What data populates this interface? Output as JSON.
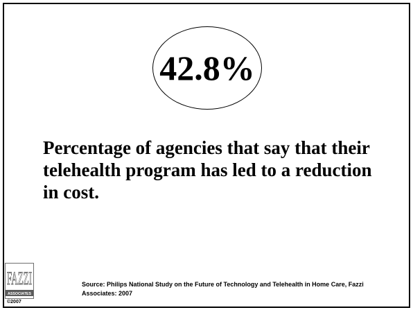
{
  "slide": {
    "statistic": "42.8%",
    "description": "Percentage of agencies that say that their telehealth program has led to a reduction in cost.",
    "source": "Source: Philips National Study on the Future of Technology and Telehealth in Home Care, Fazzi Associates: 2007",
    "copyright": "©2007"
  },
  "logo": {
    "wordmark": "FAZZI",
    "tagline": "ASSOCIATES"
  },
  "colors": {
    "background": "#ffffff",
    "text": "#000000",
    "logo_gray": "#6b6b6b"
  }
}
